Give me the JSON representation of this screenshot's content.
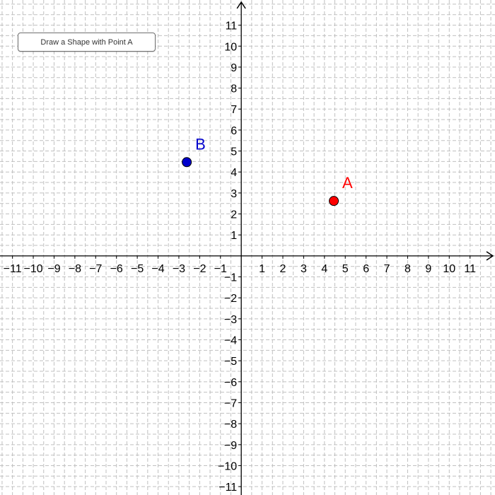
{
  "toolbar": {
    "button_label": "Draw a Shape with Point A"
  },
  "graph": {
    "x_range": [
      -11.6,
      12.2
    ],
    "y_range": [
      -11.4,
      12.2
    ],
    "x_ticks": [
      "−11",
      "−10",
      "−9",
      "−8",
      "−7",
      "−6",
      "−5",
      "−4",
      "−3",
      "−2",
      "−1",
      "1",
      "2",
      "3",
      "4",
      "5",
      "6",
      "7",
      "8",
      "9",
      "10",
      "11"
    ],
    "x_tick_values": [
      -11,
      -10,
      -9,
      -8,
      -7,
      -6,
      -5,
      -4,
      -3,
      -2,
      -1,
      1,
      2,
      3,
      4,
      5,
      6,
      7,
      8,
      9,
      10,
      11
    ],
    "y_ticks": [
      "11",
      "10",
      "9",
      "8",
      "7",
      "6",
      "5",
      "4",
      "3",
      "2",
      "1",
      "−1",
      "−2",
      "−3",
      "−4",
      "−5",
      "−6",
      "−7",
      "−8",
      "−9",
      "−10",
      "−11"
    ],
    "y_tick_values": [
      11,
      10,
      9,
      8,
      7,
      6,
      5,
      4,
      3,
      2,
      1,
      -1,
      -2,
      -3,
      -4,
      -5,
      -6,
      -7,
      -8,
      -9,
      -10,
      -11
    ],
    "grid": true,
    "grid_minor_step": 0.5
  },
  "points": [
    {
      "label": "A",
      "x": 4.45,
      "y": 2.62,
      "color": "#ff0000",
      "label_color": "#ff0000"
    },
    {
      "label": "B",
      "x": -2.62,
      "y": 4.47,
      "color": "#0000cc",
      "label_color": "#0000cc"
    }
  ],
  "colors": {
    "axis": "#000000",
    "grid": "#c0c0c0",
    "point_stroke": "#000000"
  }
}
